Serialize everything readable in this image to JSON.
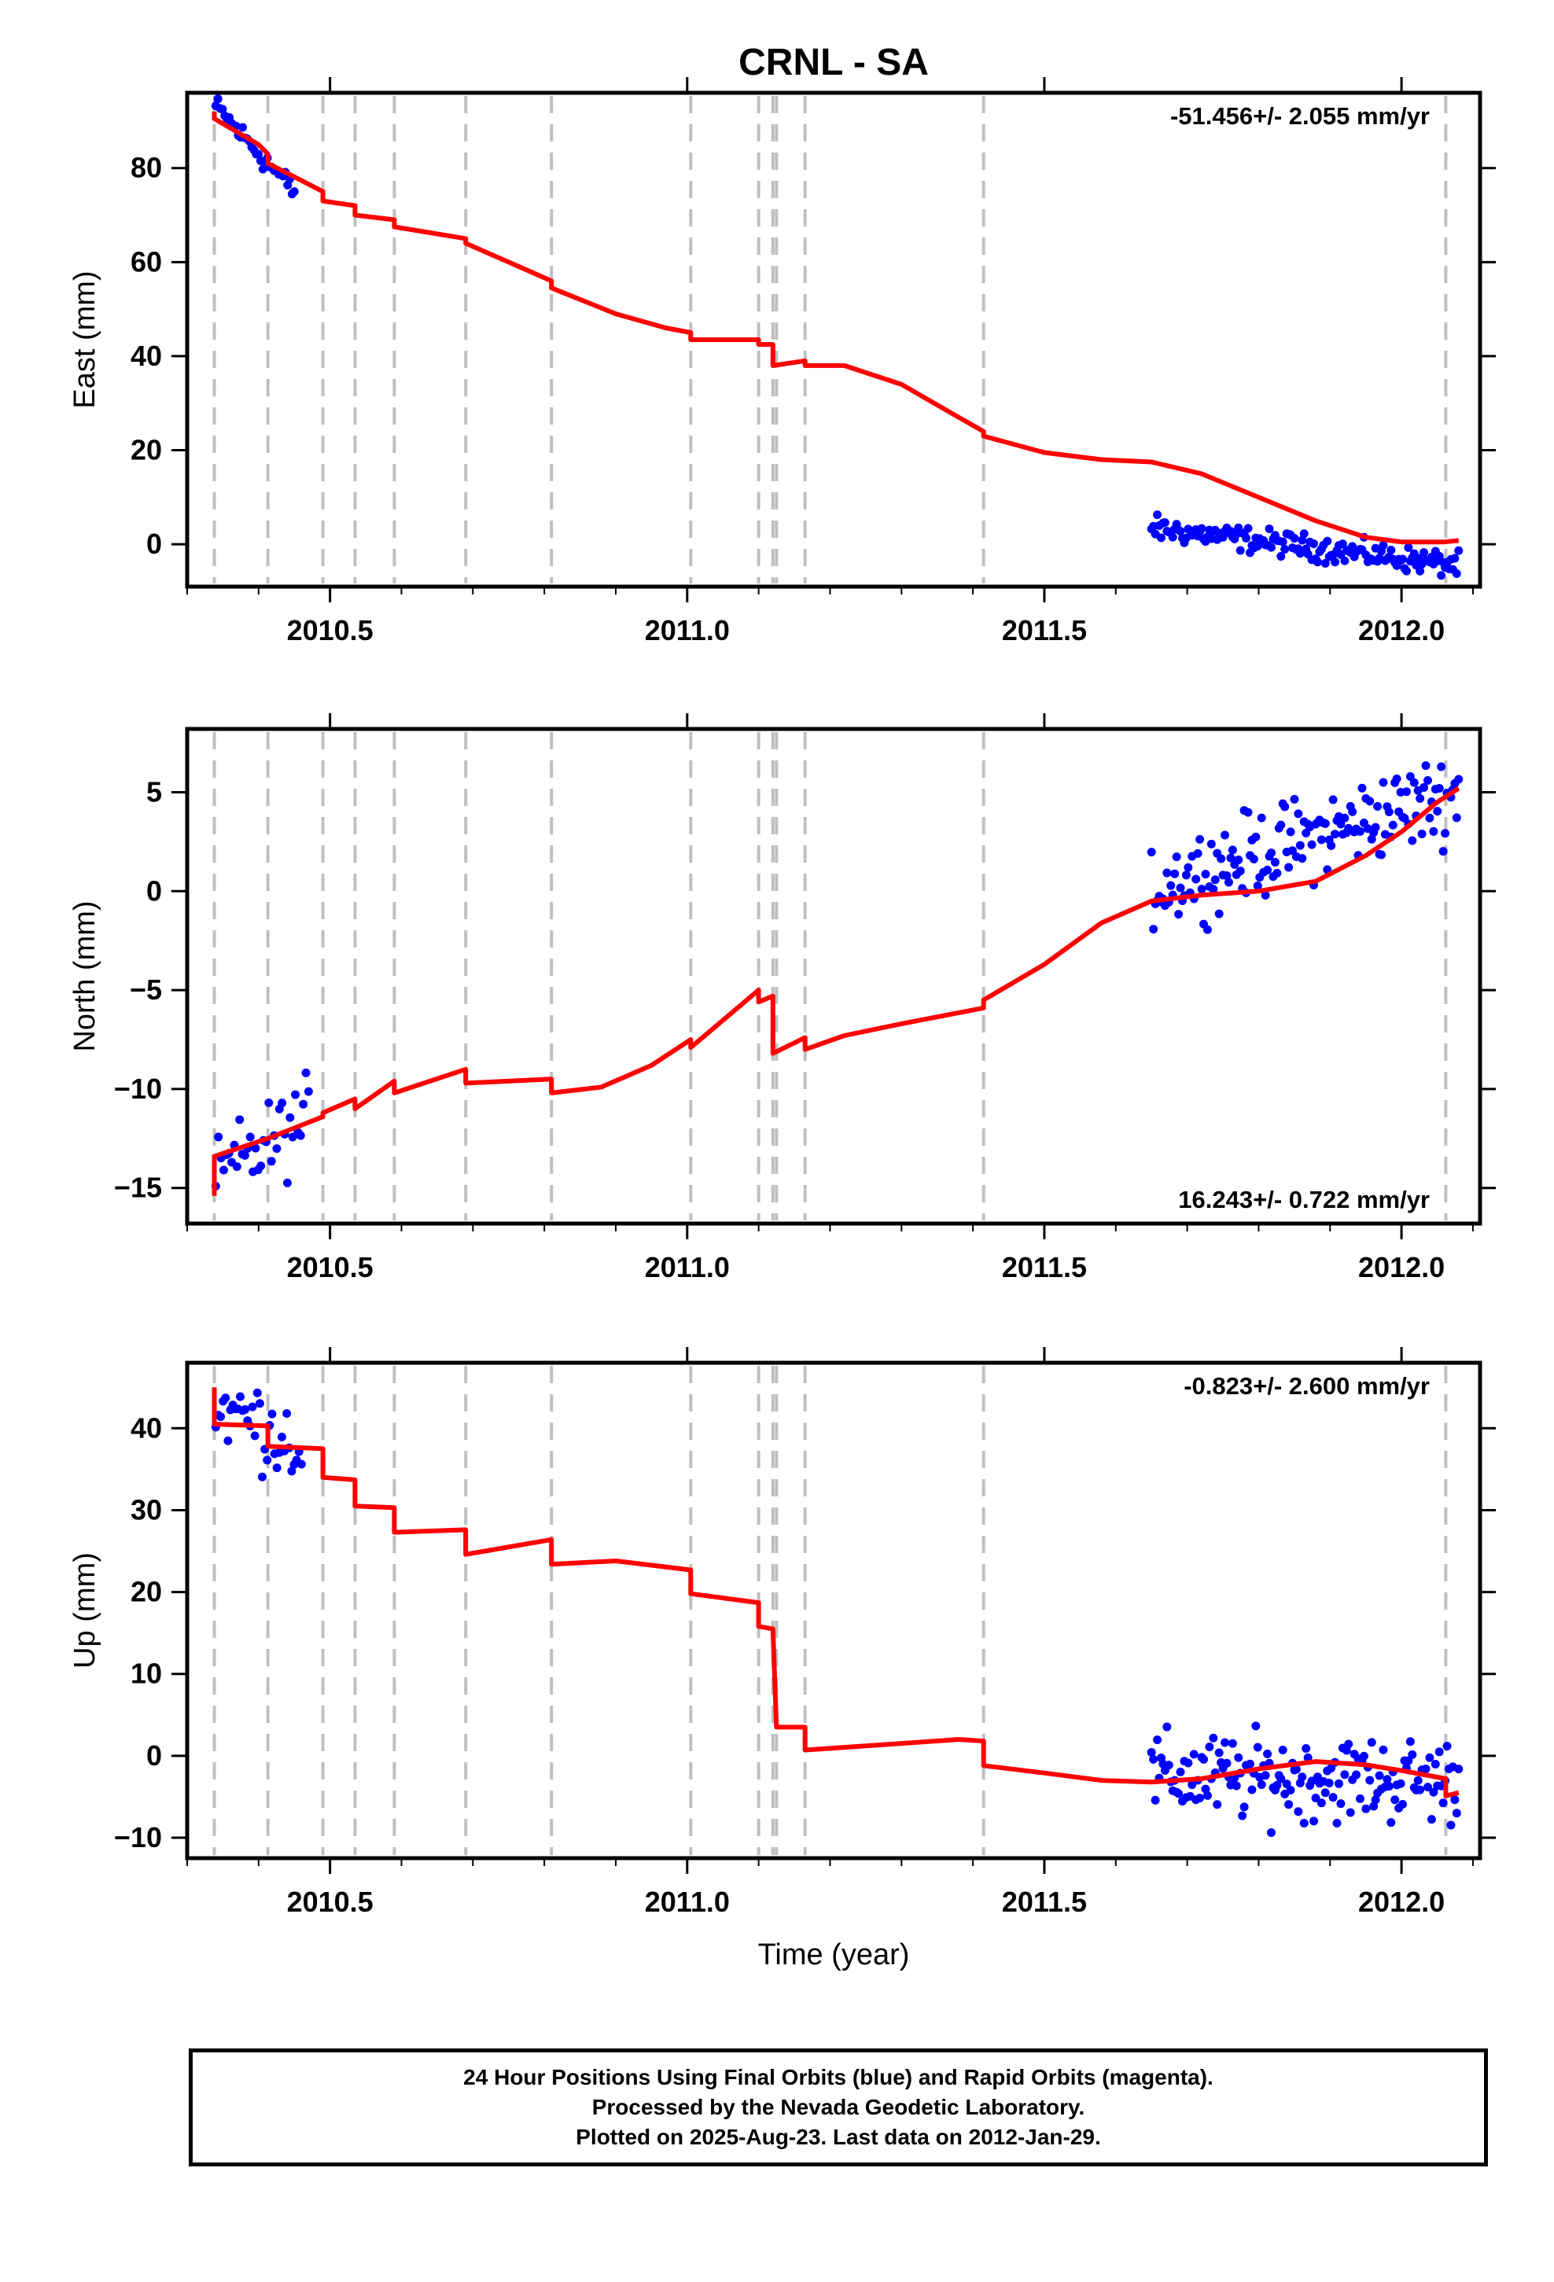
{
  "title": "CRNL - SA",
  "colors": {
    "model": "#ff0000",
    "final_orbits": "#0000ff",
    "events": "#bfbfbf",
    "frame": "#000000"
  },
  "chart_data": [
    {
      "type": "scatter",
      "name": "east",
      "ylabel": "East (mm)",
      "xlabel": "",
      "xlim": [
        2010.3,
        2012.11
      ],
      "ylim": [
        -9,
        96
      ],
      "xticks": [
        2010.5,
        2011.0,
        2011.5,
        2012.0
      ],
      "xtick_labels": [
        "2010.5",
        "2011.0",
        "2011.5",
        "2012.0"
      ],
      "yticks": [
        0,
        20,
        40,
        60,
        80
      ],
      "ytick_labels": [
        "0",
        "20",
        "40",
        "60",
        "80"
      ],
      "rate": "-51.456+/- 2.055 mm/yr",
      "rate_position": "top-right",
      "data_segments": [
        {
          "x": [
            2010.34,
            2010.45
          ],
          "y": [
            93,
            75
          ]
        },
        {
          "x": [
            2011.65,
            2012.08
          ],
          "y": [
            3.5,
            -4.5
          ]
        }
      ],
      "model": [
        [
          2010.338,
          92
        ],
        [
          2010.338,
          90.5
        ],
        [
          2010.4,
          85
        ],
        [
          2010.413,
          83
        ],
        [
          2010.413,
          81
        ],
        [
          2010.49,
          75
        ],
        [
          2010.49,
          73
        ],
        [
          2010.535,
          72
        ],
        [
          2010.535,
          70
        ],
        [
          2010.59,
          69
        ],
        [
          2010.59,
          67.5
        ],
        [
          2010.69,
          65
        ],
        [
          2010.69,
          64
        ],
        [
          2010.75,
          60
        ],
        [
          2010.81,
          56
        ],
        [
          2010.81,
          54.5
        ],
        [
          2010.9,
          49
        ],
        [
          2010.97,
          46
        ],
        [
          2011.005,
          45
        ],
        [
          2011.005,
          43.5
        ],
        [
          2011.1,
          43.5
        ],
        [
          2011.1,
          42.5
        ],
        [
          2011.12,
          42.5
        ],
        [
          2011.12,
          38
        ],
        [
          2011.165,
          39
        ],
        [
          2011.165,
          38
        ],
        [
          2011.22,
          38
        ],
        [
          2011.3,
          34
        ],
        [
          2011.38,
          27
        ],
        [
          2011.415,
          24
        ],
        [
          2011.415,
          23
        ],
        [
          2011.5,
          19.5
        ],
        [
          2011.58,
          18
        ],
        [
          2011.65,
          17.5
        ],
        [
          2011.72,
          15
        ],
        [
          2011.8,
          10
        ],
        [
          2011.88,
          5
        ],
        [
          2011.95,
          1.5
        ],
        [
          2012.0,
          0.5
        ],
        [
          2012.06,
          0.5
        ],
        [
          2012.08,
          0.8
        ]
      ],
      "events": [
        2010.338,
        2010.413,
        2010.49,
        2010.535,
        2010.59,
        2010.69,
        2010.81,
        2011.005,
        2011.1,
        2011.12,
        2011.125,
        2011.165,
        2011.415,
        2012.062
      ]
    },
    {
      "type": "scatter",
      "name": "north",
      "ylabel": "North (mm)",
      "xlabel": "",
      "xlim": [
        2010.3,
        2012.11
      ],
      "ylim": [
        -16.8,
        8.2
      ],
      "xticks": [
        2010.5,
        2011.0,
        2011.5,
        2012.0
      ],
      "xtick_labels": [
        "2010.5",
        "2011.0",
        "2011.5",
        "2012.0"
      ],
      "yticks": [
        -15,
        -10,
        -5,
        0,
        5
      ],
      "ytick_labels": [
        "−15",
        "−10",
        "−5",
        "0",
        "5"
      ],
      "rate": "16.243+/- 0.722 mm/yr",
      "rate_position": "bottom-right",
      "data_segments": [
        {
          "x": [
            2010.34,
            2010.47
          ],
          "y": [
            -14.5,
            -11.5
          ]
        },
        {
          "x": [
            2011.65,
            2012.08
          ],
          "y": [
            0.2,
            5
          ]
        }
      ],
      "model": [
        [
          2010.338,
          -15.4
        ],
        [
          2010.338,
          -13.4
        ],
        [
          2010.413,
          -12.5
        ],
        [
          2010.49,
          -11.4
        ],
        [
          2010.49,
          -11.2
        ],
        [
          2010.535,
          -10.5
        ],
        [
          2010.535,
          -11.0
        ],
        [
          2010.59,
          -9.6
        ],
        [
          2010.59,
          -10.2
        ],
        [
          2010.69,
          -9.0
        ],
        [
          2010.69,
          -9.7
        ],
        [
          2010.81,
          -9.5
        ],
        [
          2010.81,
          -10.2
        ],
        [
          2010.88,
          -9.9
        ],
        [
          2010.95,
          -8.8
        ],
        [
          2011.005,
          -7.5
        ],
        [
          2011.005,
          -7.9
        ],
        [
          2011.1,
          -5.0
        ],
        [
          2011.1,
          -5.6
        ],
        [
          2011.12,
          -5.3
        ],
        [
          2011.12,
          -8.2
        ],
        [
          2011.165,
          -7.4
        ],
        [
          2011.165,
          -8.0
        ],
        [
          2011.22,
          -7.3
        ],
        [
          2011.3,
          -6.7
        ],
        [
          2011.415,
          -5.9
        ],
        [
          2011.415,
          -5.5
        ],
        [
          2011.5,
          -3.7
        ],
        [
          2011.58,
          -1.6
        ],
        [
          2011.65,
          -0.5
        ],
        [
          2011.72,
          -0.2
        ],
        [
          2011.8,
          0.0
        ],
        [
          2011.88,
          0.5
        ],
        [
          2011.95,
          1.8
        ],
        [
          2012.0,
          3.0
        ],
        [
          2012.05,
          4.5
        ],
        [
          2012.08,
          5.2
        ]
      ],
      "events": [
        2010.338,
        2010.413,
        2010.49,
        2010.535,
        2010.59,
        2010.69,
        2010.81,
        2011.005,
        2011.1,
        2011.12,
        2011.125,
        2011.165,
        2011.415,
        2012.062
      ]
    },
    {
      "type": "scatter",
      "name": "up",
      "ylabel": "Up (mm)",
      "xlabel": "Time (year)",
      "xlim": [
        2010.3,
        2012.11
      ],
      "ylim": [
        -12.5,
        48
      ],
      "xticks": [
        2010.5,
        2011.0,
        2011.5,
        2012.0
      ],
      "xtick_labels": [
        "2010.5",
        "2011.0",
        "2011.5",
        "2012.0"
      ],
      "yticks": [
        -10,
        0,
        10,
        20,
        30,
        40
      ],
      "ytick_labels": [
        "−10",
        "0",
        "10",
        "20",
        "30",
        "40"
      ],
      "rate": "-0.823+/- 2.600 mm/yr",
      "rate_position": "top-right",
      "data_segments": [
        {
          "x": [
            2010.34,
            2010.46
          ],
          "y": [
            43,
            38
          ]
        },
        {
          "x": [
            2011.65,
            2012.08
          ],
          "y": [
            -2.5,
            -3
          ]
        }
      ],
      "model": [
        [
          2010.338,
          45
        ],
        [
          2010.338,
          40.5
        ],
        [
          2010.413,
          40.3
        ],
        [
          2010.413,
          37.8
        ],
        [
          2010.49,
          37.5
        ],
        [
          2010.49,
          34
        ],
        [
          2010.535,
          33.7
        ],
        [
          2010.535,
          30.5
        ],
        [
          2010.59,
          30.3
        ],
        [
          2010.59,
          27.3
        ],
        [
          2010.69,
          27.6
        ],
        [
          2010.69,
          24.6
        ],
        [
          2010.81,
          26.4
        ],
        [
          2010.81,
          23.4
        ],
        [
          2010.9,
          23.8
        ],
        [
          2011.005,
          22.7
        ],
        [
          2011.005,
          19.8
        ],
        [
          2011.1,
          18.7
        ],
        [
          2011.1,
          15.8
        ],
        [
          2011.12,
          15.5
        ],
        [
          2011.125,
          3.5
        ],
        [
          2011.165,
          3.5
        ],
        [
          2011.165,
          0.7
        ],
        [
          2011.25,
          1.2
        ],
        [
          2011.38,
          2.0
        ],
        [
          2011.415,
          1.8
        ],
        [
          2011.415,
          -1.2
        ],
        [
          2011.5,
          -2.1
        ],
        [
          2011.58,
          -3.0
        ],
        [
          2011.65,
          -3.2
        ],
        [
          2011.72,
          -2.8
        ],
        [
          2011.8,
          -1.6
        ],
        [
          2011.88,
          -0.7
        ],
        [
          2011.95,
          -1.1
        ],
        [
          2012.0,
          -1.8
        ],
        [
          2012.062,
          -2.8
        ],
        [
          2012.062,
          -4.9
        ],
        [
          2012.08,
          -4.5
        ]
      ],
      "events": [
        2010.338,
        2010.413,
        2010.49,
        2010.535,
        2010.59,
        2010.69,
        2010.81,
        2011.005,
        2011.1,
        2011.12,
        2011.125,
        2011.165,
        2011.415,
        2012.062
      ]
    }
  ],
  "footer": {
    "line1": "24 Hour Positions Using Final Orbits (blue) and Rapid Orbits (magenta).",
    "line2": "Processed by the Nevada Geodetic Laboratory.",
    "line3": "Plotted on 2025-Aug-23. Last data on 2012-Jan-29."
  }
}
